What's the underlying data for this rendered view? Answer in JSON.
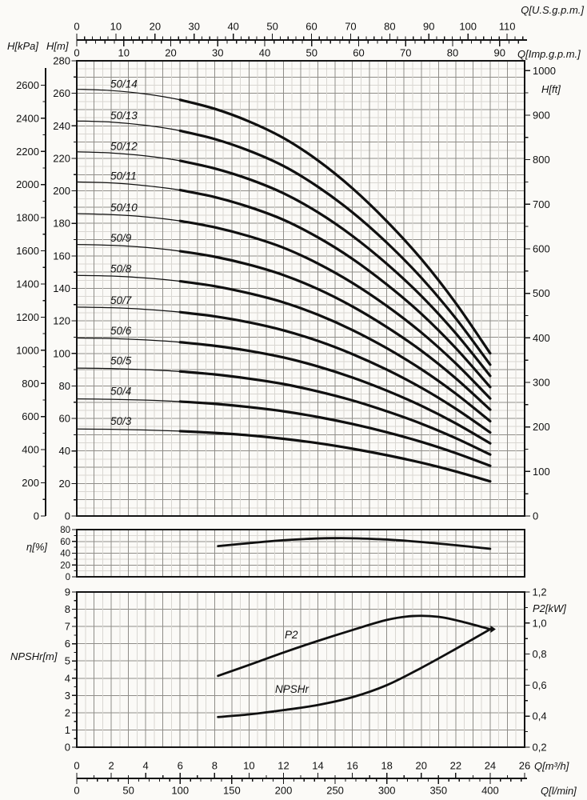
{
  "figure": {
    "background": "#fbfaf7",
    "line_color": "#101010",
    "unit_labels": {
      "top_us_gpm": "Q[U.S.g.p.m.]",
      "top_imp_gpm": "Q[Imp.g.p.m.]",
      "left_pressure": "H[kPa]",
      "left_head": "H[m]",
      "right_head_ft": "H[ft]",
      "efficiency": "η[%]",
      "npsh": "NPSHr[m]",
      "power": "P2[kW]",
      "bottom_m3h": "Q[m³/h]",
      "bottom_lmin": "Q[l/min]"
    }
  },
  "chart_data": [
    {
      "id": "head_flow",
      "type": "line",
      "xlabel": "Q[m³/h]",
      "ylabel": "H[m]",
      "xlim": [
        0,
        26
      ],
      "ylim": [
        0,
        280
      ],
      "grid": "on",
      "x_axis": {
        "min": 0,
        "max": 26,
        "label_step": 2,
        "minor_step": 1,
        "grid_major": 1,
        "grid_minor": 0.5
      },
      "y_axis": {
        "min": 0,
        "max": 280,
        "label_step": 20,
        "minor_step": 10,
        "grid_major": 10,
        "grid_minor": 5
      },
      "extra_axes": {
        "kpa": {
          "label": "H[kPa]",
          "min": 0,
          "max": 2600,
          "label_step": 200,
          "minor_step": 100
        },
        "ft": {
          "label": "H[ft]",
          "min": 0,
          "max": 1000,
          "label_step": 100,
          "minor_step": 50
        },
        "us_gpm": {
          "label": "Q[U.S.g.p.m.]",
          "min": 0,
          "max": 110,
          "label_step": 10,
          "minor_step": 2
        },
        "imp_gpm": {
          "label": "Q[Imp.g.p.m.]",
          "min": 0,
          "max": 90,
          "label_step": 10,
          "minor_step": 2
        },
        "l_min": {
          "label": "Q[l/min]",
          "min": 0,
          "max": 400,
          "label_step": 50,
          "minor_step": 10
        }
      },
      "x": [
        0,
        2,
        4,
        6,
        8,
        10,
        12,
        14,
        16,
        18,
        20,
        22,
        24
      ],
      "thick_from_x": 6,
      "series": [
        {
          "name": "50/14",
          "values": [
            262.5,
            261.7,
            259.6,
            256.0,
            250.5,
            242.7,
            232.5,
            218.7,
            201.6,
            181.3,
            158.1,
            131.0,
            100.1
          ]
        },
        {
          "name": "50/13",
          "values": [
            243.0,
            242.3,
            240.3,
            237.0,
            231.9,
            224.7,
            215.3,
            202.5,
            186.8,
            168.1,
            146.6,
            121.6,
            93.1
          ]
        },
        {
          "name": "50/12",
          "values": [
            224.0,
            223.3,
            221.5,
            218.5,
            213.8,
            207.2,
            198.5,
            186.8,
            172.3,
            155.1,
            135.4,
            112.4,
            86.2
          ]
        },
        {
          "name": "50/11",
          "values": [
            205.5,
            204.9,
            203.2,
            200.5,
            196.2,
            190.1,
            182.2,
            171.4,
            158.2,
            142.4,
            124.4,
            103.3,
            79.3
          ]
        },
        {
          "name": "50/10",
          "values": [
            186.0,
            185.4,
            184.0,
            181.5,
            177.6,
            172.1,
            165.0,
            155.3,
            143.4,
            129.2,
            112.9,
            93.9,
            72.3
          ]
        },
        {
          "name": "50/9",
          "values": [
            167.0,
            166.5,
            165.2,
            162.9,
            159.5,
            154.6,
            148.2,
            139.6,
            128.9,
            116.2,
            101.7,
            84.7,
            65.4
          ]
        },
        {
          "name": "50/8",
          "values": [
            148.0,
            147.6,
            146.4,
            144.4,
            141.4,
            137.0,
            131.4,
            123.8,
            114.4,
            103.2,
            90.3,
            75.3,
            58.3
          ]
        },
        {
          "name": "50/7",
          "values": [
            128.5,
            128.1,
            127.1,
            125.4,
            122.8,
            119.1,
            114.2,
            107.7,
            99.6,
            90.0,
            78.9,
            66.0,
            51.4
          ]
        },
        {
          "name": "50/6",
          "values": [
            109.5,
            109.2,
            108.3,
            106.9,
            104.7,
            101.6,
            97.5,
            92.0,
            85.2,
            77.1,
            67.8,
            57.0,
            44.7
          ]
        },
        {
          "name": "50/5",
          "values": [
            91.0,
            90.7,
            90.0,
            88.9,
            87.1,
            84.5,
            81.2,
            76.6,
            71.1,
            64.4,
            56.8,
            47.9,
            37.8
          ]
        },
        {
          "name": "50/4",
          "values": [
            72.0,
            71.8,
            71.3,
            70.4,
            69.0,
            67.0,
            64.4,
            60.9,
            56.6,
            51.5,
            45.6,
            38.7,
            30.9
          ]
        },
        {
          "name": "50/3",
          "values": [
            53.5,
            53.3,
            52.9,
            52.2,
            51.1,
            49.6,
            47.5,
            44.8,
            41.4,
            37.4,
            32.8,
            27.4,
            21.3
          ]
        }
      ]
    },
    {
      "id": "efficiency",
      "type": "line",
      "ylabel": "η[%]",
      "ylim": [
        0,
        80
      ],
      "y_axis": {
        "min": 0,
        "max": 80,
        "label_step": 20,
        "minor_step": 10
      },
      "series": [
        {
          "name": "η",
          "x": [
            8.2,
            10,
            12,
            14,
            15,
            16,
            18,
            20,
            22,
            24
          ],
          "values": [
            52,
            57,
            62,
            65,
            65.5,
            65.3,
            63.2,
            59,
            53.5,
            47.5
          ]
        }
      ]
    },
    {
      "id": "npsh_power",
      "type": "line",
      "y_left": {
        "label": "NPSHr[m]",
        "min": 0,
        "max": 9,
        "label_step": 1,
        "minor_step": 0.5
      },
      "y_right": {
        "label": "P2[kW]",
        "min": 0.2,
        "max": 1.2,
        "label_step": 0.2,
        "minor_step": 0.1,
        "tick_labels": [
          "0,2",
          "0,4",
          "0,6",
          "0,8",
          "1,0",
          "1,2"
        ]
      },
      "series": [
        {
          "name": "P2",
          "axis": "right",
          "x": [
            8.2,
            10,
            12,
            14,
            16,
            18,
            19.5,
            21,
            22.5,
            24
          ],
          "values": [
            0.66,
            0.73,
            0.81,
            0.885,
            0.955,
            1.02,
            1.045,
            1.04,
            1.005,
            0.96
          ]
        },
        {
          "name": "NPSHr",
          "axis": "left",
          "x": [
            8.2,
            10,
            12,
            14,
            16,
            18,
            20,
            22,
            24
          ],
          "values": [
            1.75,
            1.9,
            2.15,
            2.45,
            2.9,
            3.6,
            4.6,
            5.7,
            6.84
          ]
        }
      ],
      "series_label_positions": {
        "P2": [
          356,
          798
        ],
        "NPSHr": [
          344,
          866
        ]
      },
      "junction_marker": {
        "x": 24,
        "y_left": 6.84
      }
    }
  ]
}
